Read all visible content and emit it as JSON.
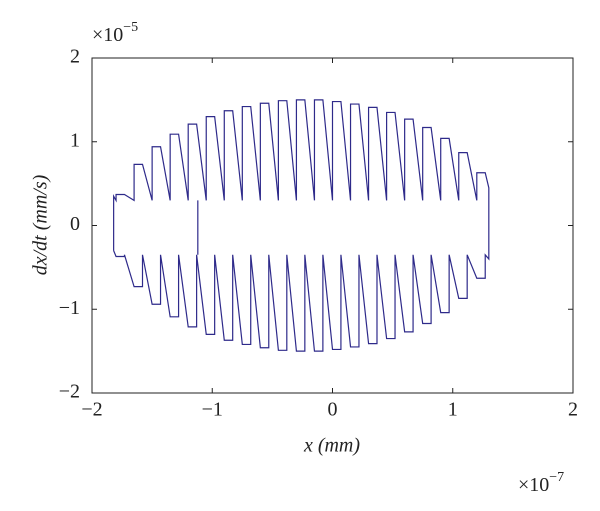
{
  "chart_data": {
    "type": "line",
    "xlabel": "x (mm)",
    "ylabel": "dx/dt (mm/s)",
    "x_multiplier": {
      "base": "×10",
      "exponent": "−7"
    },
    "y_multiplier": {
      "base": "×10",
      "exponent": "−5"
    },
    "xlim": [
      -2,
      2
    ],
    "ylim": [
      -2,
      2
    ],
    "xticks": [
      {
        "value": -2,
        "label": "−2"
      },
      {
        "value": -1,
        "label": "−1"
      },
      0,
      1,
      2
    ],
    "yticks": [
      {
        "value": -2,
        "label": "−2"
      },
      {
        "value": -1,
        "label": "−1"
      },
      0,
      1,
      2
    ],
    "grid": false,
    "x": [
      -1.82,
      -1.82,
      -1.8,
      -1.8,
      -1.73,
      -1.65,
      -1.65,
      -1.58,
      -1.5,
      -1.5,
      -1.43,
      -1.35,
      -1.35,
      -1.28,
      -1.2,
      -1.2,
      -1.13,
      -1.05,
      -1.05,
      -0.98,
      -0.9,
      -0.9,
      -0.83,
      -0.75,
      -0.75,
      -0.68,
      -0.6,
      -0.6,
      -0.53,
      -0.45,
      -0.45,
      -0.38,
      -0.3,
      -0.3,
      -0.23,
      -0.15,
      -0.15,
      -0.08,
      0,
      0,
      0.07,
      0.15,
      0.15,
      0.22,
      0.3,
      0.3,
      0.37,
      0.45,
      0.45,
      0.52,
      0.6,
      0.6,
      0.67,
      0.75,
      0.75,
      0.82,
      0.9,
      0.9,
      0.97,
      1.05,
      1.05,
      1.12,
      1.2,
      1.2,
      1.27,
      1.3,
      1.3,
      1.27,
      1.27,
      1.2,
      1.12,
      1.12,
      1.05,
      0.97,
      0.97,
      0.9,
      0.82,
      0.82,
      0.75,
      0.67,
      0.67,
      0.6,
      0.52,
      0.52,
      0.45,
      0.37,
      0.37,
      0.3,
      0.22,
      0.22,
      0.15,
      0.07,
      0.07,
      0,
      -0.08,
      -0.08,
      -0.15,
      -0.23,
      -0.23,
      -0.3,
      -0.38,
      -0.38,
      -0.45,
      -0.53,
      -0.53,
      -0.6,
      -0.68,
      -0.68,
      -0.75,
      -0.83,
      -0.83,
      -0.9,
      -0.98,
      -0.98,
      -1.05,
      -1.13,
      -1.13,
      -1.2,
      -1.28,
      -1.28,
      -1.35,
      -1.43,
      -1.43,
      -1.5,
      -1.58,
      -1.58,
      -1.65,
      -1.73,
      -1.73,
      -1.8,
      -1.82,
      null,
      -1.12,
      -1.12
    ],
    "series": [
      {
        "color": "#2e2a8a",
        "values": [
          -0.3,
          0.35,
          0.3,
          0.37,
          0.37,
          0.3,
          0.73,
          0.73,
          0.3,
          0.94,
          0.94,
          0.3,
          1.09,
          1.09,
          0.3,
          1.21,
          1.21,
          0.3,
          1.3,
          1.3,
          0.3,
          1.37,
          1.37,
          0.3,
          1.42,
          1.42,
          0.3,
          1.46,
          1.46,
          0.3,
          1.49,
          1.49,
          0.3,
          1.5,
          1.5,
          0.3,
          1.5,
          1.5,
          0.3,
          1.48,
          1.48,
          0.3,
          1.45,
          1.45,
          0.3,
          1.41,
          1.41,
          0.3,
          1.35,
          1.35,
          0.3,
          1.27,
          1.27,
          0.3,
          1.17,
          1.17,
          0.3,
          1.04,
          1.04,
          0.3,
          0.87,
          0.87,
          0.3,
          0.63,
          0.63,
          0.45,
          -0.4,
          -0.35,
          -0.63,
          -0.63,
          -0.35,
          -0.87,
          -0.87,
          -0.35,
          -1.04,
          -1.04,
          -0.35,
          -1.17,
          -1.17,
          -0.35,
          -1.27,
          -1.27,
          -0.35,
          -1.35,
          -1.35,
          -0.35,
          -1.41,
          -1.41,
          -0.35,
          -1.45,
          -1.45,
          -0.35,
          -1.48,
          -1.48,
          -0.35,
          -1.5,
          -1.5,
          -0.35,
          -1.5,
          -1.5,
          -0.35,
          -1.49,
          -1.49,
          -0.35,
          -1.46,
          -1.46,
          -0.35,
          -1.42,
          -1.42,
          -0.35,
          -1.37,
          -1.37,
          -0.35,
          -1.3,
          -1.3,
          -0.35,
          -1.21,
          -1.21,
          -0.35,
          -1.09,
          -1.09,
          -0.35,
          -0.94,
          -0.94,
          -0.35,
          -0.73,
          -0.73,
          -0.35,
          -0.37,
          -0.37,
          -0.3,
          null,
          0.3,
          -0.35
        ]
      }
    ]
  }
}
